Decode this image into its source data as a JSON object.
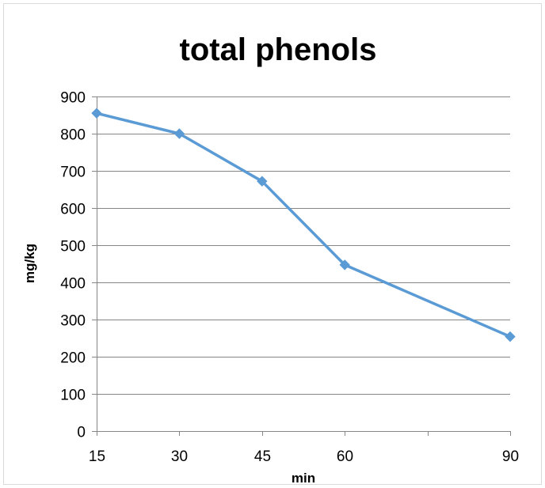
{
  "chart_data": {
    "type": "line",
    "title": "total phenols",
    "xlabel": "min",
    "ylabel": "mg/kg",
    "categories": [
      "15",
      "30",
      "45",
      "60",
      "",
      "90"
    ],
    "series": [
      {
        "values": [
          855,
          800,
          672,
          447,
          null,
          254
        ]
      }
    ],
    "ylim": [
      0,
      900
    ],
    "yticks": [
      0,
      100,
      200,
      300,
      400,
      500,
      600,
      700,
      800,
      900
    ],
    "grid": true,
    "legend": "none",
    "colors": {
      "series": "#5b9bd5",
      "grid": "#868686",
      "axis": "#868686"
    }
  }
}
